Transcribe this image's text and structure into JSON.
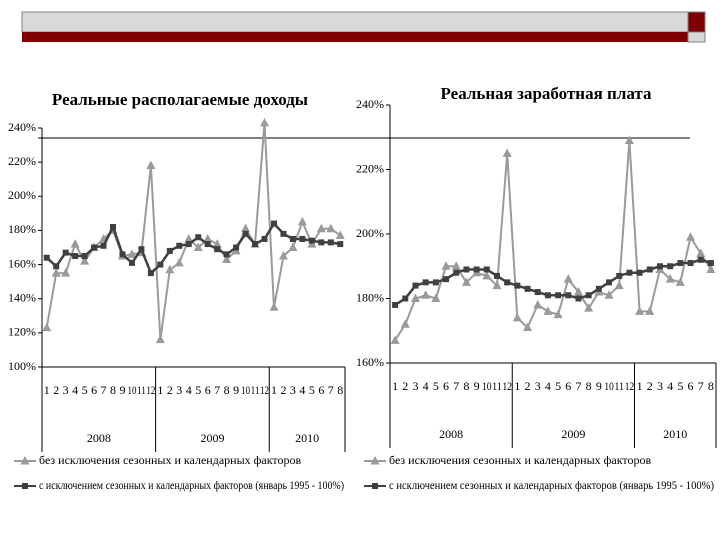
{
  "chart_data": [
    {
      "type": "line",
      "title": "Реальные располагаемые доходы",
      "categories": [
        "1",
        "2",
        "3",
        "4",
        "5",
        "6",
        "7",
        "8",
        "9",
        "10",
        "11",
        "12",
        "1",
        "2",
        "3",
        "4",
        "5",
        "6",
        "7",
        "8",
        "9",
        "10",
        "11",
        "12",
        "1",
        "2",
        "3",
        "4",
        "5",
        "6",
        "7",
        "8"
      ],
      "year_labels": [
        "2008",
        "2009",
        "2010"
      ],
      "ylim": [
        100,
        240
      ],
      "yticks": [
        {
          "value": 100,
          "label": "100%"
        },
        {
          "value": 120,
          "label": "120%"
        },
        {
          "value": 140,
          "label": "140%"
        },
        {
          "value": 160,
          "label": "160%"
        },
        {
          "value": 180,
          "label": "180%"
        },
        {
          "value": 200,
          "label": "200%"
        },
        {
          "value": 220,
          "label": "220%"
        },
        {
          "value": 240,
          "label": "240%"
        }
      ],
      "series": [
        {
          "name": "без исключения сезонных и календарных факторов",
          "color": "#9a9a9a",
          "marker": "triangle",
          "values": [
            123,
            155,
            155,
            172,
            162,
            170,
            175,
            180,
            165,
            166,
            167,
            218,
            116,
            157,
            161,
            175,
            170,
            175,
            172,
            163,
            168,
            181,
            172,
            243,
            135,
            165,
            170,
            185,
            172,
            181,
            181,
            177
          ]
        },
        {
          "name": "с исключением сезонных и календарных факторов (январь 1995 - 100%)",
          "color": "#404040",
          "marker": "square",
          "values": [
            164,
            159,
            167,
            165,
            165,
            170,
            171,
            182,
            166,
            161,
            169,
            155,
            160,
            168,
            171,
            172,
            176,
            172,
            169,
            166,
            170,
            178,
            172,
            175,
            184,
            178,
            175,
            175,
            174,
            173,
            173,
            172
          ]
        }
      ]
    },
    {
      "type": "line",
      "title": "Реальная заработная плата",
      "categories": [
        "1",
        "2",
        "3",
        "4",
        "5",
        "6",
        "7",
        "8",
        "9",
        "10",
        "11",
        "12",
        "1",
        "2",
        "3",
        "4",
        "5",
        "6",
        "7",
        "8",
        "9",
        "10",
        "11",
        "12",
        "1",
        "2",
        "3",
        "4",
        "5",
        "6",
        "7",
        "8"
      ],
      "year_labels": [
        "2008",
        "2009",
        "2010"
      ],
      "ylim": [
        160,
        240
      ],
      "yticks": [
        {
          "value": 160,
          "label": "160%"
        },
        {
          "value": 180,
          "label": "180%"
        },
        {
          "value": 200,
          "label": "200%"
        },
        {
          "value": 220,
          "label": "220%"
        },
        {
          "value": 240,
          "label": "240%"
        }
      ],
      "series": [
        {
          "name": "без исключения сезонных и календарных факторов",
          "color": "#9a9a9a",
          "marker": "triangle",
          "values": [
            167,
            172,
            180,
            181,
            180,
            190,
            190,
            185,
            188,
            187,
            184,
            225,
            174,
            171,
            178,
            176,
            175,
            186,
            182,
            177,
            182,
            181,
            184,
            229,
            176,
            176,
            189,
            186,
            185,
            199,
            194,
            189
          ]
        },
        {
          "name": "с исключением сезонных и календарных факторов (январь 1995 - 100%)",
          "color": "#404040",
          "marker": "square",
          "values": [
            178,
            180,
            184,
            185,
            185,
            186,
            188,
            189,
            189,
            189,
            187,
            185,
            184,
            183,
            182,
            181,
            181,
            181,
            180,
            181,
            183,
            185,
            187,
            188,
            188,
            189,
            190,
            190,
            191,
            191,
            192,
            191
          ]
        }
      ]
    }
  ]
}
